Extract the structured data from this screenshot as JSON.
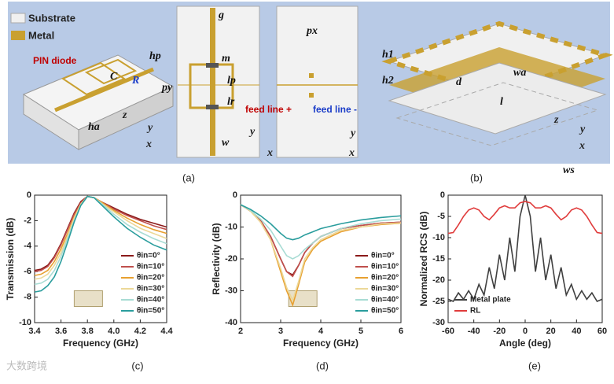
{
  "diagram": {
    "legend": [
      "Substrate",
      "Metal"
    ],
    "labels": [
      "PIN diode",
      "C",
      "R",
      "hp",
      "ha",
      "py",
      "g",
      "m",
      "lp",
      "lr",
      "w",
      "feed line +",
      "px",
      "feed line -",
      "h1",
      "h2",
      "d",
      "wa",
      "l",
      "ws"
    ],
    "axes": [
      [
        "z",
        "y",
        "x"
      ],
      [
        "y",
        "x"
      ],
      [
        "y",
        "x"
      ],
      [
        "z",
        "y",
        "x"
      ]
    ],
    "panels": [
      "(a)",
      "(b)",
      "(c)",
      "(d)",
      "(e)"
    ],
    "watermark": "大数跨境"
  },
  "chart_data": [
    {
      "type": "line",
      "xlabel": "Frequency (GHz)",
      "ylabel": "Transmission (dB)",
      "xlim": [
        3.4,
        4.4
      ],
      "xticks": [
        3.4,
        3.6,
        3.8,
        {
          "value": 4,
          "label": "4.0"
        },
        4.2,
        4.4
      ],
      "ylim": [
        -10,
        0
      ],
      "yticks": [
        -10,
        -8,
        -6,
        -4,
        -2,
        0
      ],
      "legend": "lower right",
      "x": [
        3.4,
        3.45,
        3.5,
        3.55,
        3.6,
        3.65,
        3.7,
        3.75,
        3.8,
        3.85,
        3.9,
        4.0,
        4.1,
        4.2,
        4.3,
        4.4
      ],
      "series": [
        {
          "name": "θin=0°",
          "color": "#8b1a1a",
          "values": [
            -5.9,
            -5.8,
            -5.5,
            -4.8,
            -3.8,
            -2.6,
            -1.4,
            -0.5,
            -0.1,
            -0.2,
            -0.5,
            -1.0,
            -1.5,
            -1.9,
            -2.2,
            -2.5
          ]
        },
        {
          "name": "θin=10°",
          "color": "#c0504d",
          "values": [
            -6.0,
            -5.9,
            -5.6,
            -4.9,
            -3.9,
            -2.7,
            -1.5,
            -0.6,
            -0.1,
            -0.2,
            -0.5,
            -1.1,
            -1.6,
            -2.0,
            -2.4,
            -2.7
          ]
        },
        {
          "name": "θin=20°",
          "color": "#e8a030",
          "values": [
            -6.3,
            -6.2,
            -5.9,
            -5.2,
            -4.2,
            -3.0,
            -1.7,
            -0.7,
            -0.1,
            -0.2,
            -0.5,
            -1.2,
            -1.8,
            -2.3,
            -2.7,
            -3.0
          ]
        },
        {
          "name": "θin=30°",
          "color": "#ecd898",
          "values": [
            -6.6,
            -6.5,
            -6.2,
            -5.5,
            -4.5,
            -3.2,
            -1.8,
            -0.7,
            -0.1,
            -0.2,
            -0.6,
            -1.3,
            -2.0,
            -2.6,
            -3.0,
            -3.4
          ]
        },
        {
          "name": "θin=40°",
          "color": "#a8dcd4",
          "values": [
            -7.0,
            -6.9,
            -6.6,
            -5.9,
            -4.8,
            -3.4,
            -2.0,
            -0.8,
            -0.1,
            -0.2,
            -0.6,
            -1.5,
            -2.3,
            -2.9,
            -3.4,
            -3.8
          ]
        },
        {
          "name": "θin=50°",
          "color": "#2a9d9d",
          "values": [
            -7.6,
            -7.5,
            -7.1,
            -6.4,
            -5.2,
            -3.7,
            -2.1,
            -0.8,
            -0.1,
            -0.2,
            -0.7,
            -1.7,
            -2.6,
            -3.3,
            -3.9,
            -4.3
          ]
        }
      ]
    },
    {
      "type": "line",
      "xlabel": "Frequency (GHz)",
      "ylabel": "Reflectivity (dB)",
      "xlim": [
        2,
        6
      ],
      "xticks": [
        2,
        3,
        4,
        5,
        6
      ],
      "ylim": [
        -40,
        0
      ],
      "yticks": [
        -40,
        -30,
        -20,
        -10,
        0
      ],
      "legend": "lower right",
      "x": [
        2,
        2.25,
        2.5,
        2.75,
        3,
        3.15,
        3.3,
        3.45,
        3.6,
        3.8,
        4,
        4.5,
        5,
        5.5,
        6
      ],
      "series": [
        {
          "name": "θin=0°",
          "color": "#8b1a1a",
          "values": [
            -3,
            -5,
            -8,
            -13,
            -20,
            -24,
            -25,
            -22,
            -18,
            -15,
            -13,
            -10.5,
            -9.5,
            -8.8,
            -8.5
          ]
        },
        {
          "name": "θin=10°",
          "color": "#c0504d",
          "values": [
            -3,
            -5,
            -8,
            -13,
            -20,
            -24,
            -25.5,
            -22,
            -18,
            -15,
            -13,
            -10.5,
            -9.5,
            -8.8,
            -8.5
          ]
        },
        {
          "name": "θin=20°",
          "color": "#e8a030",
          "values": [
            -3,
            -5,
            -8.5,
            -14,
            -24,
            -30,
            -34.5,
            -28,
            -21,
            -17,
            -14.5,
            -11.5,
            -10,
            -9.2,
            -8.8
          ]
        },
        {
          "name": "θin=30°",
          "color": "#ecd898",
          "values": [
            -3,
            -5,
            -8.5,
            -14,
            -23,
            -29,
            -33,
            -27,
            -20,
            -16.5,
            -14,
            -11,
            -10,
            -9,
            -8.7
          ]
        },
        {
          "name": "θin=40°",
          "color": "#a8dcd4",
          "values": [
            -3,
            -4.8,
            -7.5,
            -11,
            -16,
            -19,
            -20,
            -19,
            -17,
            -15,
            -13,
            -10.5,
            -9,
            -8,
            -7.5
          ]
        },
        {
          "name": "θin=50°",
          "color": "#2a9d9d",
          "values": [
            -3,
            -4.5,
            -6.5,
            -9,
            -12,
            -13.5,
            -14,
            -13.5,
            -12.5,
            -11.5,
            -10.5,
            -9,
            -7.8,
            -7,
            -6.5
          ]
        }
      ]
    },
    {
      "type": "line",
      "xlabel": "Angle (deg)",
      "ylabel": "Normalized RCS (dB)",
      "xlim": [
        -60,
        60
      ],
      "xticks": [
        -60,
        -40,
        -20,
        0,
        20,
        40,
        60
      ],
      "ylim": [
        -30,
        0
      ],
      "yticks": [
        -30,
        -25,
        -20,
        -15,
        -10,
        -5,
        0
      ],
      "legend": "lower left",
      "x": [
        -60,
        -56,
        -52,
        -48,
        -44,
        -40,
        -36,
        -32,
        -28,
        -24,
        -20,
        -16,
        -12,
        -8,
        -4,
        0,
        4,
        8,
        12,
        16,
        20,
        24,
        28,
        32,
        36,
        40,
        44,
        48,
        52,
        56,
        60
      ],
      "series": [
        {
          "name": "Metal plate",
          "color": "#404040",
          "values": [
            -24.5,
            -25,
            -23,
            -24.5,
            -22.5,
            -24.5,
            -21,
            -23.5,
            -17,
            -22,
            -14,
            -20,
            -10,
            -18,
            -5,
            0,
            -5,
            -18,
            -10,
            -20,
            -14,
            -22,
            -17,
            -23.5,
            -21,
            -24.5,
            -22.5,
            -24.5,
            -23,
            -25,
            -24.5
          ]
        },
        {
          "name": "RL",
          "color": "#e03c3c",
          "values": [
            -9,
            -8.8,
            -7,
            -5,
            -3.5,
            -3,
            -3.5,
            -5,
            -5.8,
            -4.5,
            -3,
            -2.5,
            -3,
            -3,
            -1.8,
            -1.5,
            -1.8,
            -3,
            -3,
            -2.5,
            -3,
            -4.5,
            -5.8,
            -5,
            -3.5,
            -3,
            -3.5,
            -5,
            -7,
            -8.8,
            -9
          ]
        }
      ]
    }
  ]
}
